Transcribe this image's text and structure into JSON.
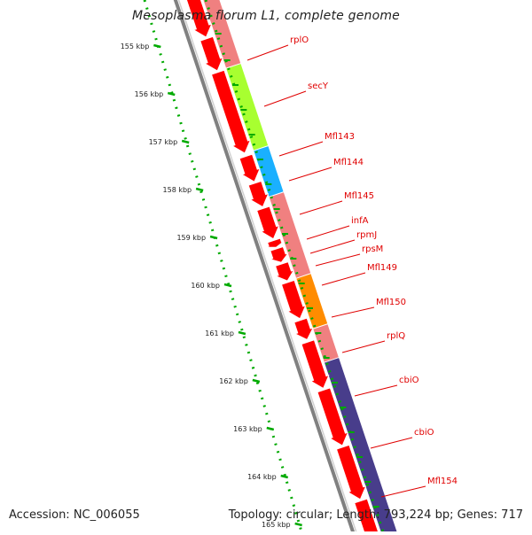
{
  "title": "Mesoplasma florum L1, complete genome",
  "footer": {
    "accession": "Accession: NC_006055",
    "summary": "Topology: circular; Length: 793,224 bp; Genes: 717"
  },
  "ticks": [
    {
      "label": "155 kbp"
    },
    {
      "label": "156 kbp"
    },
    {
      "label": "157 kbp"
    },
    {
      "label": "158 kbp"
    },
    {
      "label": "159 kbp"
    },
    {
      "label": "160 kbp"
    },
    {
      "label": "161 kbp"
    },
    {
      "label": "162 kbp"
    },
    {
      "label": "163 kbp"
    },
    {
      "label": "164 kbp"
    },
    {
      "label": "165 kbp"
    }
  ],
  "gene_labels": [
    {
      "name": "rplO"
    },
    {
      "name": "secY"
    },
    {
      "name": "Mfl143"
    },
    {
      "name": "Mfl144"
    },
    {
      "name": "Mfl145"
    },
    {
      "name": "infA"
    },
    {
      "name": "rpmJ"
    },
    {
      "name": "rpsM"
    },
    {
      "name": "Mfl149"
    },
    {
      "name": "Mfl150"
    },
    {
      "name": "rplQ"
    },
    {
      "name": "cbiO"
    },
    {
      "name": "cbiO"
    },
    {
      "name": "Mfl154"
    }
  ],
  "colors": {
    "cds": "#ff0000",
    "label": "#e00000",
    "tick": "#00aa00",
    "backbone": "#808080",
    "cog_default": "#f08080",
    "cog_green": "#a8ff30",
    "cog_blue": "#1ab0ff",
    "cog_orange": "#ff8c00",
    "cog_purple": "#483d8b"
  }
}
